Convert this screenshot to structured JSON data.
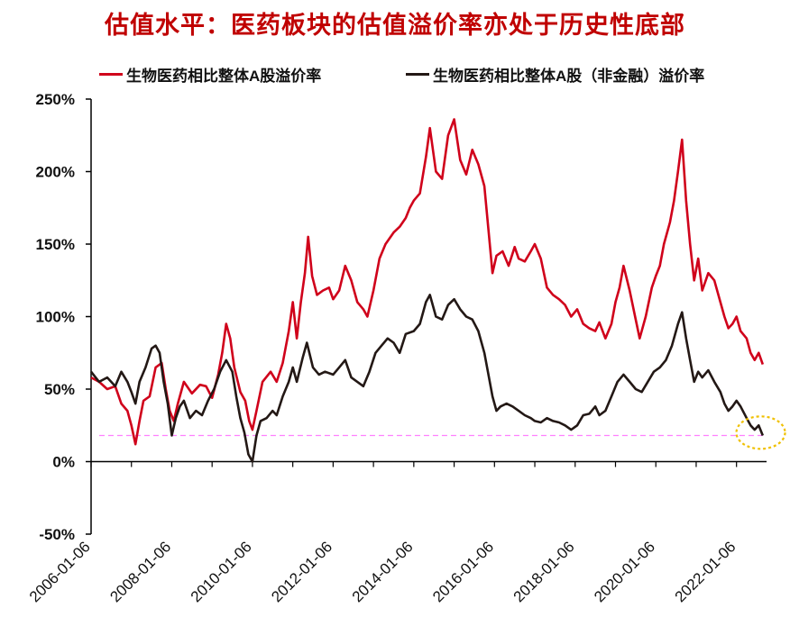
{
  "title": "估值水平：医药板块的估值溢价率亦处于历史性底部",
  "chart_data": {
    "type": "line",
    "title": "估值水平：医药板块的估值溢价率亦处于历史性底部",
    "y_ticks": [
      "250%",
      "200%",
      "150%",
      "100%",
      "50%",
      "0%",
      "-50%"
    ],
    "y_tick_values": [
      250,
      200,
      150,
      100,
      50,
      0,
      -50
    ],
    "ylim": [
      -50,
      250
    ],
    "x_ticks": [
      "2006-01-06",
      "2008-01-06",
      "2010-01-06",
      "2012-01-06",
      "2014-01-06",
      "2016-01-06",
      "2018-01-06",
      "2020-01-06",
      "2022-01-06"
    ],
    "x_tick_values": [
      2006.0,
      2008.0,
      2010.0,
      2012.0,
      2014.0,
      2016.0,
      2018.0,
      2020.0,
      2022.0
    ],
    "xlim": [
      2006.0,
      2022.7
    ],
    "reference_line": {
      "y": 18,
      "color": "#ff80ff",
      "style": "dashed"
    },
    "highlight_circle": {
      "x": 2022.6,
      "y": 20,
      "color": "#f0c000"
    },
    "series": [
      {
        "name": "生物医药相比整体A股溢价率",
        "color": "#d0021b",
        "points": [
          [
            2006.0,
            58
          ],
          [
            2006.2,
            55
          ],
          [
            2006.4,
            50
          ],
          [
            2006.6,
            52
          ],
          [
            2006.75,
            40
          ],
          [
            2006.9,
            35
          ],
          [
            2007.0,
            25
          ],
          [
            2007.1,
            12
          ],
          [
            2007.2,
            28
          ],
          [
            2007.3,
            42
          ],
          [
            2007.45,
            45
          ],
          [
            2007.6,
            65
          ],
          [
            2007.75,
            68
          ],
          [
            2007.85,
            50
          ],
          [
            2007.95,
            35
          ],
          [
            2008.05,
            28
          ],
          [
            2008.15,
            40
          ],
          [
            2008.3,
            55
          ],
          [
            2008.5,
            47
          ],
          [
            2008.7,
            53
          ],
          [
            2008.85,
            52
          ],
          [
            2009.0,
            44
          ],
          [
            2009.15,
            60
          ],
          [
            2009.25,
            75
          ],
          [
            2009.35,
            95
          ],
          [
            2009.45,
            85
          ],
          [
            2009.55,
            65
          ],
          [
            2009.7,
            48
          ],
          [
            2009.82,
            42
          ],
          [
            2009.92,
            28
          ],
          [
            2010.0,
            22
          ],
          [
            2010.1,
            35
          ],
          [
            2010.25,
            55
          ],
          [
            2010.45,
            62
          ],
          [
            2010.6,
            55
          ],
          [
            2010.75,
            68
          ],
          [
            2010.9,
            90
          ],
          [
            2011.0,
            110
          ],
          [
            2011.1,
            85
          ],
          [
            2011.2,
            110
          ],
          [
            2011.3,
            130
          ],
          [
            2011.38,
            155
          ],
          [
            2011.48,
            128
          ],
          [
            2011.6,
            115
          ],
          [
            2011.75,
            118
          ],
          [
            2011.9,
            120
          ],
          [
            2012.0,
            112
          ],
          [
            2012.15,
            118
          ],
          [
            2012.3,
            135
          ],
          [
            2012.45,
            125
          ],
          [
            2012.6,
            110
          ],
          [
            2012.75,
            105
          ],
          [
            2012.85,
            100
          ],
          [
            2013.0,
            118
          ],
          [
            2013.15,
            140
          ],
          [
            2013.3,
            150
          ],
          [
            2013.5,
            158
          ],
          [
            2013.65,
            162
          ],
          [
            2013.8,
            168
          ],
          [
            2013.9,
            175
          ],
          [
            2014.0,
            180
          ],
          [
            2014.15,
            185
          ],
          [
            2014.3,
            210
          ],
          [
            2014.4,
            230
          ],
          [
            2014.55,
            200
          ],
          [
            2014.7,
            195
          ],
          [
            2014.85,
            225
          ],
          [
            2015.0,
            236
          ],
          [
            2015.15,
            208
          ],
          [
            2015.3,
            198
          ],
          [
            2015.45,
            215
          ],
          [
            2015.6,
            205
          ],
          [
            2015.75,
            190
          ],
          [
            2015.85,
            160
          ],
          [
            2015.95,
            130
          ],
          [
            2016.05,
            142
          ],
          [
            2016.2,
            145
          ],
          [
            2016.35,
            135
          ],
          [
            2016.5,
            148
          ],
          [
            2016.6,
            140
          ],
          [
            2016.75,
            138
          ],
          [
            2016.9,
            145
          ],
          [
            2017.0,
            150
          ],
          [
            2017.15,
            140
          ],
          [
            2017.3,
            120
          ],
          [
            2017.45,
            115
          ],
          [
            2017.6,
            112
          ],
          [
            2017.75,
            108
          ],
          [
            2017.9,
            100
          ],
          [
            2018.05,
            105
          ],
          [
            2018.2,
            95
          ],
          [
            2018.35,
            92
          ],
          [
            2018.5,
            90
          ],
          [
            2018.6,
            96
          ],
          [
            2018.75,
            85
          ],
          [
            2018.9,
            95
          ],
          [
            2019.0,
            110
          ],
          [
            2019.1,
            120
          ],
          [
            2019.2,
            135
          ],
          [
            2019.35,
            118
          ],
          [
            2019.5,
            98
          ],
          [
            2019.6,
            85
          ],
          [
            2019.75,
            100
          ],
          [
            2019.9,
            120
          ],
          [
            2020.0,
            128
          ],
          [
            2020.1,
            135
          ],
          [
            2020.2,
            150
          ],
          [
            2020.35,
            165
          ],
          [
            2020.45,
            180
          ],
          [
            2020.55,
            200
          ],
          [
            2020.65,
            222
          ],
          [
            2020.75,
            180
          ],
          [
            2020.85,
            150
          ],
          [
            2020.95,
            125
          ],
          [
            2021.05,
            140
          ],
          [
            2021.15,
            118
          ],
          [
            2021.3,
            130
          ],
          [
            2021.45,
            125
          ],
          [
            2021.6,
            110
          ],
          [
            2021.7,
            100
          ],
          [
            2021.8,
            92
          ],
          [
            2021.9,
            95
          ],
          [
            2022.0,
            100
          ],
          [
            2022.1,
            90
          ],
          [
            2022.25,
            85
          ],
          [
            2022.35,
            75
          ],
          [
            2022.45,
            70
          ],
          [
            2022.55,
            75
          ],
          [
            2022.65,
            67
          ]
        ]
      },
      {
        "name": "生物医药相比整体A股（非金融）溢价率",
        "color": "#231815",
        "points": [
          [
            2006.0,
            62
          ],
          [
            2006.2,
            55
          ],
          [
            2006.4,
            58
          ],
          [
            2006.6,
            52
          ],
          [
            2006.75,
            62
          ],
          [
            2006.9,
            55
          ],
          [
            2007.0,
            48
          ],
          [
            2007.1,
            40
          ],
          [
            2007.2,
            55
          ],
          [
            2007.35,
            65
          ],
          [
            2007.5,
            78
          ],
          [
            2007.6,
            80
          ],
          [
            2007.7,
            75
          ],
          [
            2007.8,
            55
          ],
          [
            2007.9,
            40
          ],
          [
            2008.0,
            18
          ],
          [
            2008.1,
            30
          ],
          [
            2008.2,
            38
          ],
          [
            2008.3,
            42
          ],
          [
            2008.45,
            30
          ],
          [
            2008.6,
            35
          ],
          [
            2008.75,
            32
          ],
          [
            2008.9,
            42
          ],
          [
            2009.05,
            50
          ],
          [
            2009.2,
            62
          ],
          [
            2009.35,
            70
          ],
          [
            2009.5,
            62
          ],
          [
            2009.6,
            45
          ],
          [
            2009.7,
            30
          ],
          [
            2009.8,
            20
          ],
          [
            2009.9,
            5
          ],
          [
            2010.0,
            0
          ],
          [
            2010.1,
            18
          ],
          [
            2010.2,
            28
          ],
          [
            2010.35,
            30
          ],
          [
            2010.5,
            35
          ],
          [
            2010.6,
            32
          ],
          [
            2010.75,
            45
          ],
          [
            2010.9,
            55
          ],
          [
            2011.0,
            65
          ],
          [
            2011.1,
            55
          ],
          [
            2011.25,
            72
          ],
          [
            2011.35,
            82
          ],
          [
            2011.5,
            65
          ],
          [
            2011.65,
            60
          ],
          [
            2011.8,
            62
          ],
          [
            2012.0,
            60
          ],
          [
            2012.15,
            65
          ],
          [
            2012.3,
            70
          ],
          [
            2012.45,
            58
          ],
          [
            2012.6,
            55
          ],
          [
            2012.75,
            52
          ],
          [
            2012.9,
            62
          ],
          [
            2013.05,
            75
          ],
          [
            2013.2,
            80
          ],
          [
            2013.35,
            85
          ],
          [
            2013.5,
            82
          ],
          [
            2013.65,
            75
          ],
          [
            2013.8,
            88
          ],
          [
            2014.0,
            90
          ],
          [
            2014.15,
            95
          ],
          [
            2014.3,
            110
          ],
          [
            2014.4,
            115
          ],
          [
            2014.55,
            100
          ],
          [
            2014.7,
            98
          ],
          [
            2014.85,
            108
          ],
          [
            2015.0,
            112
          ],
          [
            2015.15,
            105
          ],
          [
            2015.3,
            100
          ],
          [
            2015.45,
            98
          ],
          [
            2015.6,
            90
          ],
          [
            2015.75,
            75
          ],
          [
            2015.85,
            60
          ],
          [
            2015.95,
            45
          ],
          [
            2016.05,
            35
          ],
          [
            2016.15,
            38
          ],
          [
            2016.3,
            40
          ],
          [
            2016.45,
            38
          ],
          [
            2016.6,
            35
          ],
          [
            2016.75,
            32
          ],
          [
            2016.9,
            30
          ],
          [
            2017.0,
            28
          ],
          [
            2017.15,
            27
          ],
          [
            2017.3,
            30
          ],
          [
            2017.45,
            28
          ],
          [
            2017.6,
            27
          ],
          [
            2017.75,
            25
          ],
          [
            2017.9,
            22
          ],
          [
            2018.05,
            25
          ],
          [
            2018.2,
            32
          ],
          [
            2018.35,
            33
          ],
          [
            2018.5,
            38
          ],
          [
            2018.6,
            32
          ],
          [
            2018.75,
            35
          ],
          [
            2018.9,
            45
          ],
          [
            2019.05,
            55
          ],
          [
            2019.2,
            60
          ],
          [
            2019.35,
            55
          ],
          [
            2019.5,
            50
          ],
          [
            2019.65,
            48
          ],
          [
            2019.8,
            55
          ],
          [
            2019.95,
            62
          ],
          [
            2020.1,
            65
          ],
          [
            2020.25,
            70
          ],
          [
            2020.4,
            80
          ],
          [
            2020.55,
            95
          ],
          [
            2020.65,
            103
          ],
          [
            2020.75,
            85
          ],
          [
            2020.85,
            70
          ],
          [
            2020.95,
            55
          ],
          [
            2021.05,
            62
          ],
          [
            2021.15,
            58
          ],
          [
            2021.3,
            63
          ],
          [
            2021.45,
            55
          ],
          [
            2021.6,
            48
          ],
          [
            2021.7,
            40
          ],
          [
            2021.8,
            35
          ],
          [
            2021.9,
            38
          ],
          [
            2022.0,
            42
          ],
          [
            2022.1,
            38
          ],
          [
            2022.25,
            30
          ],
          [
            2022.35,
            25
          ],
          [
            2022.45,
            22
          ],
          [
            2022.55,
            25
          ],
          [
            2022.65,
            18
          ]
        ]
      }
    ]
  }
}
